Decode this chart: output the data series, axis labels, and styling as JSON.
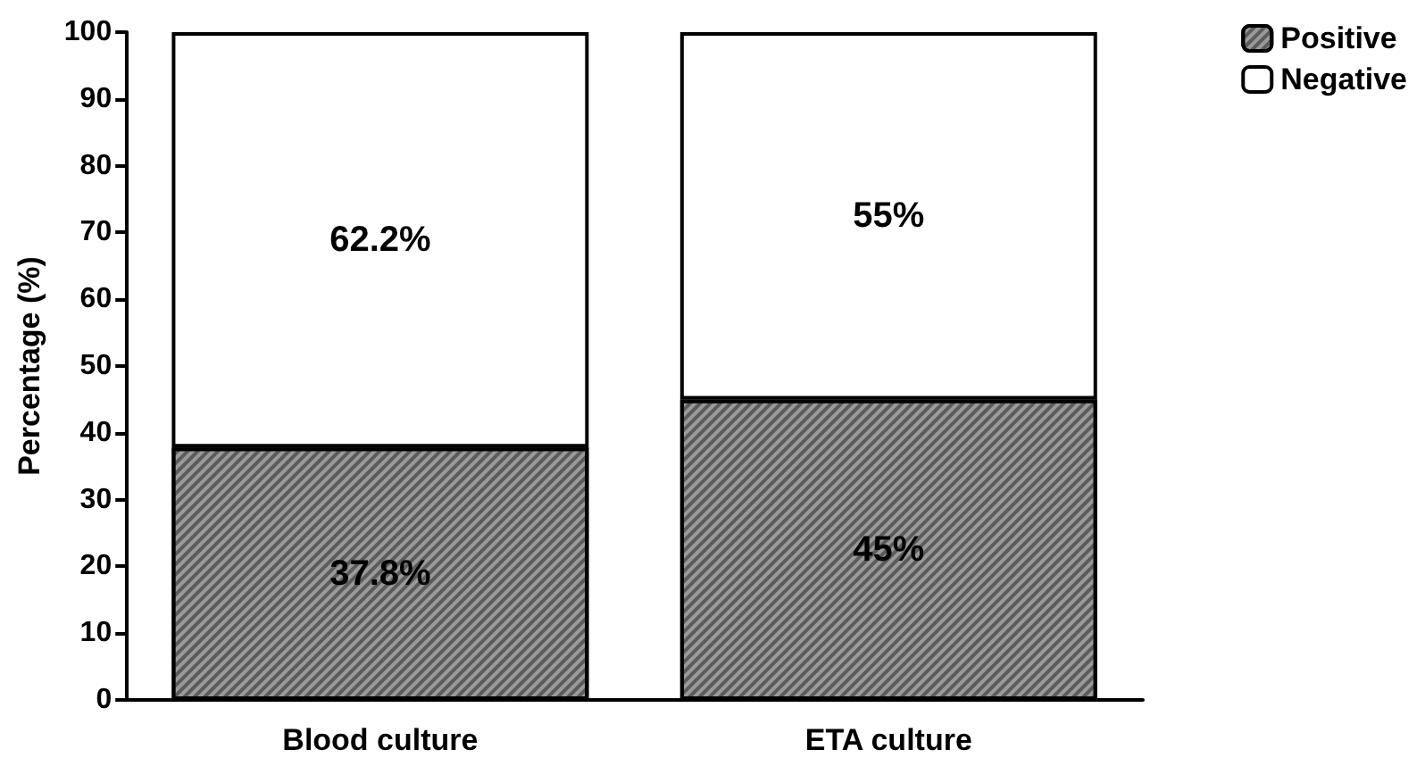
{
  "chart_data": {
    "type": "bar",
    "stacked": true,
    "ylabel": "Percentage (%)",
    "categories": [
      "Blood culture",
      "ETA culture"
    ],
    "series": [
      {
        "name": "Positive",
        "color": "#9a9a9a",
        "values": [
          37.8,
          45
        ],
        "value_labels": [
          "37.8%",
          "45%"
        ]
      },
      {
        "name": "Negative",
        "color": "#ffffff",
        "values": [
          62.2,
          55
        ],
        "value_labels": [
          "62.2%",
          "55%"
        ]
      }
    ],
    "ylim": [
      0,
      100
    ],
    "yticks": [
      0,
      10,
      20,
      30,
      40,
      50,
      60,
      70,
      80,
      90,
      100
    ],
    "grid": false,
    "legend": "top right"
  }
}
